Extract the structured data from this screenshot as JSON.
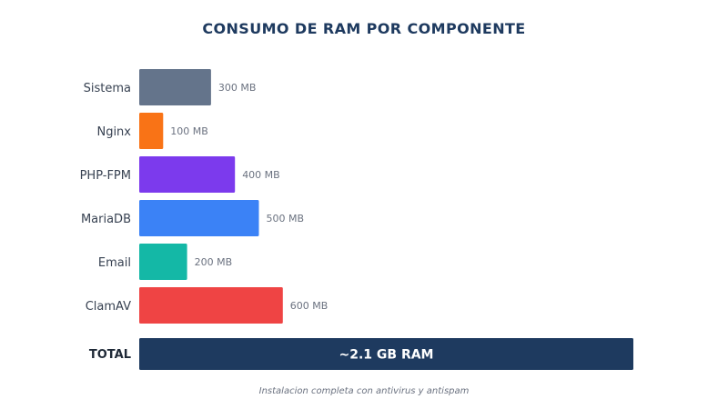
{
  "chart_data": {
    "type": "bar",
    "orientation": "horizontal",
    "title": "CONSUMO DE RAM POR COMPONENTE",
    "categories": [
      "Sistema",
      "Nginx",
      "PHP-FPM",
      "MariaDB",
      "Email",
      "ClamAV"
    ],
    "values": [
      300,
      100,
      400,
      500,
      200,
      600
    ],
    "unit": "MB",
    "value_labels": [
      "300 MB",
      "100 MB",
      "400 MB",
      "500 MB",
      "200 MB",
      "600 MB"
    ],
    "colors": [
      "#64748b",
      "#f97316",
      "#7c3aed",
      "#3b82f6",
      "#14b8a6",
      "#ef4444"
    ],
    "total": {
      "label": "TOTAL",
      "value_text": "~2.1 GB RAM",
      "color": "#1e3a5f"
    },
    "grid": false,
    "legend": false
  },
  "footnote": "Instalacion completa con antivirus y antispam"
}
